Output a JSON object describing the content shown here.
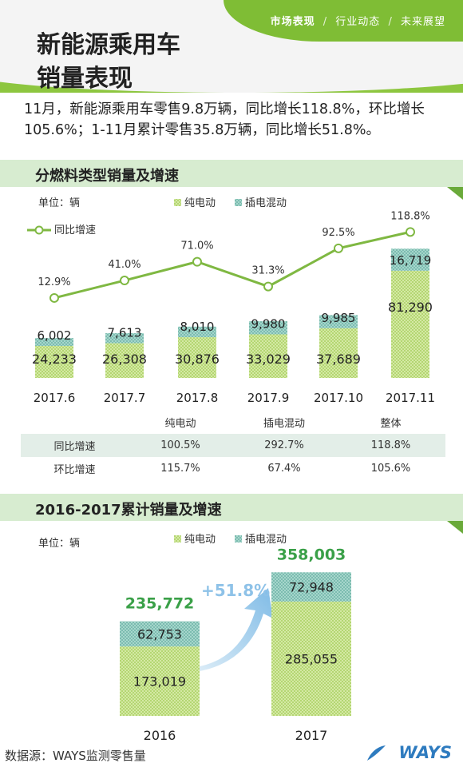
{
  "nav": {
    "item1": "市场表现",
    "sep1": "/",
    "item2": "行业动态",
    "sep2": "/",
    "item3": "未来展望"
  },
  "title": {
    "line1": "新能源乘用车",
    "line2": "销量表现"
  },
  "summary": "11月，新能源乘用车零售9.8万辆，同比增长118.8%，环比增长105.6%；1-11月累计零售35.8万辆，同比增长51.8%。",
  "section1": {
    "title": "分燃料类型销量及增速"
  },
  "section2": {
    "title": "2016-2017累计销量及增速"
  },
  "colors": {
    "ev": "#c5e08c",
    "phev": "#8cc8bc",
    "line": "#7fb842",
    "green_text": "#3aa048",
    "arrow": "#8ec2e8"
  },
  "chart_data": [
    {
      "type": "bar",
      "stacked": true,
      "unit_label": "单位：辆",
      "categories": [
        "2017.6",
        "2017.7",
        "2017.8",
        "2017.9",
        "2017.10",
        "2017.11"
      ],
      "series": [
        {
          "name": "纯电动",
          "values": [
            24233,
            26308,
            30876,
            33029,
            37689,
            81290
          ],
          "labels": [
            "24,233",
            "26,308",
            "30,876",
            "33,029",
            "37,689",
            "81,290"
          ]
        },
        {
          "name": "插电混动",
          "values": [
            6002,
            7613,
            8010,
            9980,
            9985,
            16719
          ],
          "labels": [
            "6,002",
            "7,613",
            "8,010",
            "9,980",
            "9,985",
            "16,719"
          ]
        }
      ],
      "line": {
        "name": "同比增速",
        "values": [
          12.9,
          41.0,
          71.0,
          31.3,
          92.5,
          118.8
        ],
        "labels": [
          "12.9%",
          "41.0%",
          "71.0%",
          "31.3%",
          "92.5%",
          "118.8%"
        ]
      }
    },
    {
      "type": "table",
      "columns": [
        "",
        "纯电动",
        "插电混动",
        "整体"
      ],
      "rows": [
        [
          "同比增速",
          "100.5%",
          "292.7%",
          "118.8%"
        ],
        [
          "环比增速",
          "115.7%",
          "67.4%",
          "105.6%"
        ]
      ]
    },
    {
      "type": "bar",
      "stacked": true,
      "unit_label": "单位：辆",
      "categories": [
        "2016",
        "2017"
      ],
      "series": [
        {
          "name": "纯电动",
          "values": [
            173019,
            285055
          ],
          "labels": [
            "173,019",
            "285,055"
          ]
        },
        {
          "name": "插电混动",
          "values": [
            62753,
            72948
          ],
          "labels": [
            "62,753",
            "72,948"
          ]
        }
      ],
      "totals": {
        "values": [
          235772,
          358003
        ],
        "labels": [
          "235,772",
          "358,003"
        ]
      },
      "growth_label": "+51.8%"
    }
  ],
  "source": "数据源：WAYS监测零售量",
  "logo": "WAYS"
}
